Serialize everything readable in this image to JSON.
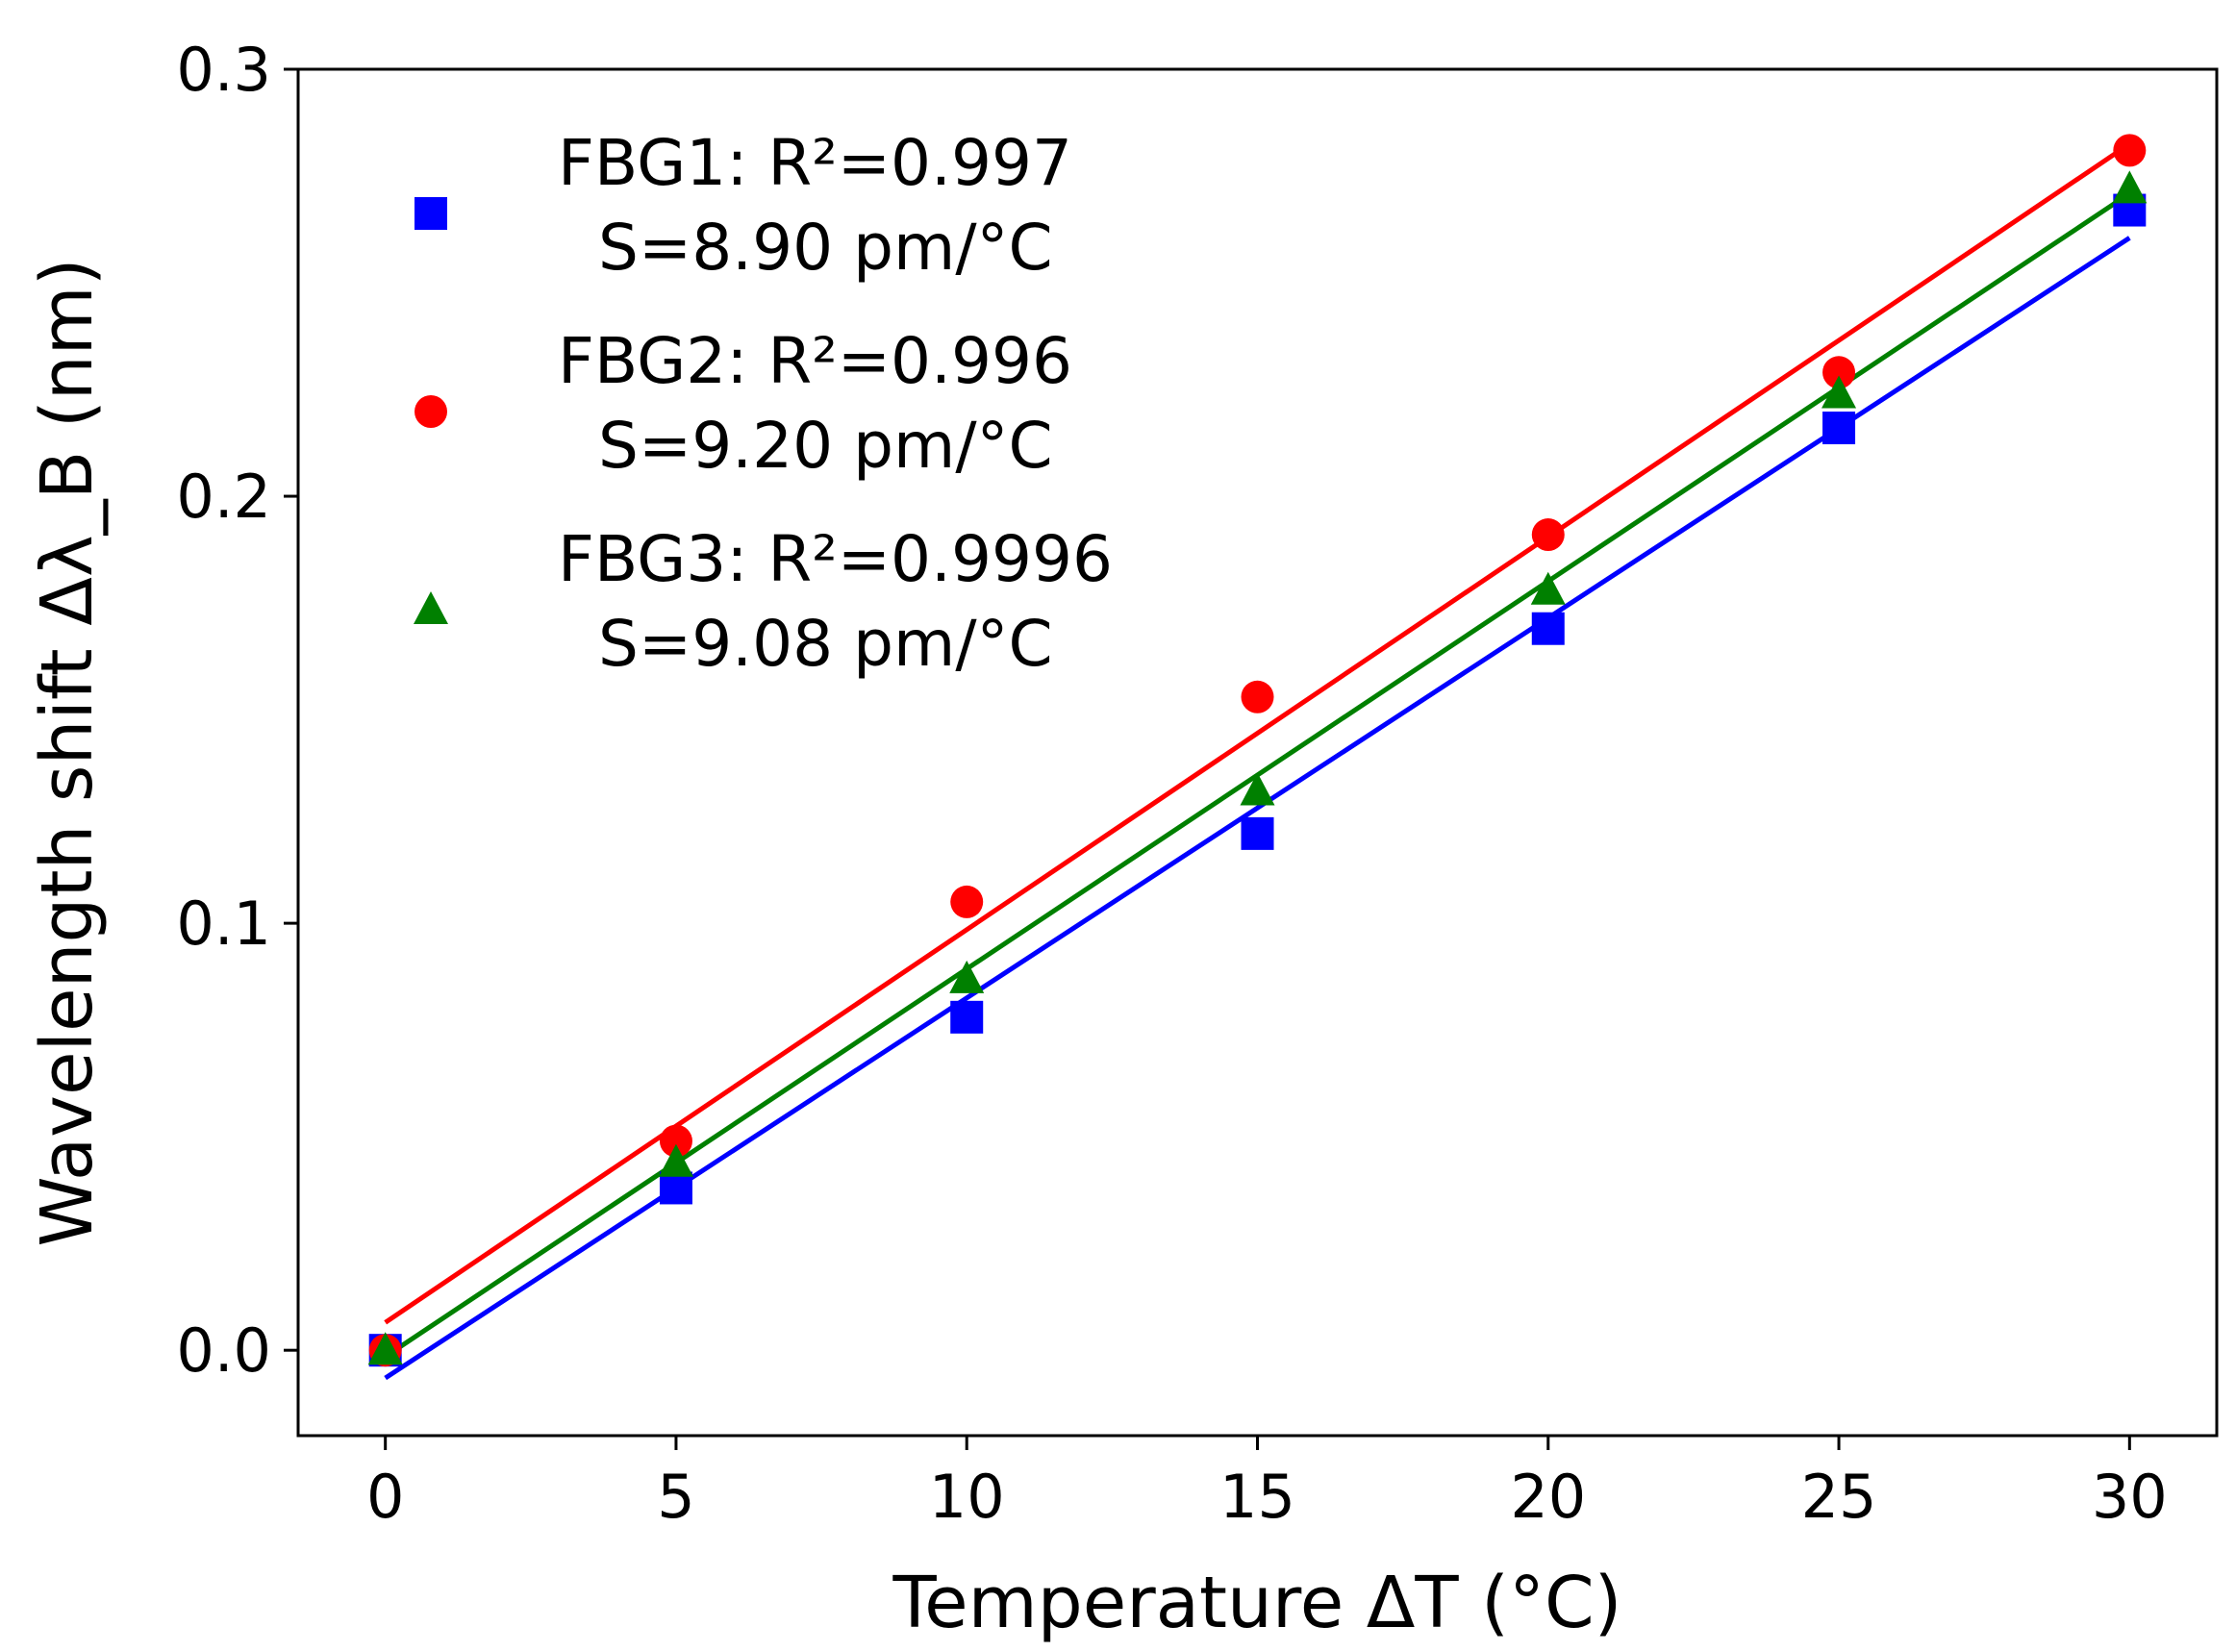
{
  "chart_data": {
    "type": "scatter",
    "title": "",
    "xlabel": "Temperature ΔT (°C)",
    "ylabel": "Wavelength shift Δλ_B (nm)",
    "xlim": [
      -1.5,
      31.5
    ],
    "ylim": [
      -0.02,
      0.3
    ],
    "xticks": [
      0,
      5,
      10,
      15,
      20,
      25,
      30
    ],
    "xtick_labels": [
      "0",
      "5",
      "10",
      "15",
      "20",
      "25",
      "30"
    ],
    "yticks": [
      0.0,
      0.1,
      0.2,
      0.3
    ],
    "ytick_labels": [
      "0.0",
      "0.1",
      "0.2",
      "0.3"
    ],
    "grid": false,
    "legend_position": "top-left",
    "series": [
      {
        "name": "FBG1",
        "label_line1": "FBG1:  R²=0.997",
        "label_line2": "S=8.90 pm/°C",
        "marker": "square",
        "color": "#0000ff",
        "x": [
          0,
          5,
          10,
          15,
          20,
          25,
          30
        ],
        "y": [
          0.0,
          0.038,
          0.078,
          0.121,
          0.169,
          0.216,
          0.267
        ],
        "fit": {
          "slope": 0.0089,
          "intercept": -0.0065
        }
      },
      {
        "name": "FBG2",
        "label_line1": "FBG2:  R²=0.996",
        "label_line2": "S=9.20 pm/°C",
        "marker": "circle",
        "color": "#ff0000",
        "x": [
          0,
          5,
          10,
          15,
          20,
          25,
          30
        ],
        "y": [
          0.0,
          0.049,
          0.105,
          0.153,
          0.191,
          0.229,
          0.281
        ],
        "fit": {
          "slope": 0.0092,
          "intercept": 0.0065
        }
      },
      {
        "name": "FBG3",
        "label_line1": "FBG3:  R²=0.9996",
        "label_line2": "S=9.08 pm/°C",
        "marker": "triangle",
        "color": "#008000",
        "x": [
          0,
          5,
          10,
          15,
          20,
          25,
          30
        ],
        "y": [
          0.0,
          0.044,
          0.087,
          0.131,
          0.178,
          0.224,
          0.272
        ],
        "fit": {
          "slope": 0.00908,
          "intercept": -0.0015
        }
      }
    ]
  }
}
